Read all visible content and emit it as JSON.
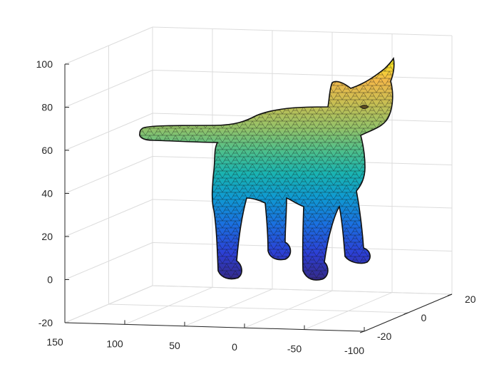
{
  "chart_data": {
    "type": "3d-surface-mesh",
    "title": "",
    "xlabel": "",
    "ylabel": "",
    "zlabel": "",
    "axes": {
      "x": {
        "ticks": [
          150,
          100,
          50,
          0,
          -50,
          -100
        ]
      },
      "y": {
        "ticks": [
          -20,
          0,
          20
        ]
      },
      "z": {
        "ticks": [
          -20,
          0,
          20,
          40,
          60,
          80,
          100
        ]
      }
    },
    "grid": true,
    "box": false,
    "colormap": "parula",
    "subject": "cat",
    "edge_color": "#111111"
  }
}
